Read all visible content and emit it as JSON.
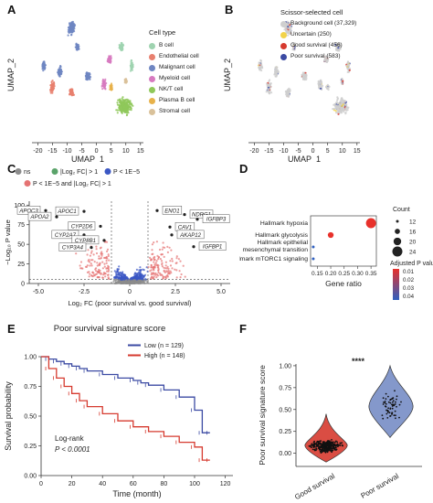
{
  "panel_labels": {
    "a": "A",
    "b": "B",
    "c": "C",
    "d": "D",
    "e": "E",
    "f": "F"
  },
  "chart_data": [
    {
      "id": "A",
      "type": "scatter",
      "xlabel": "UMAP_1",
      "ylabel": "UMAP_2",
      "xticks": [
        -20,
        -15,
        -10,
        -5,
        0,
        5,
        10,
        15
      ],
      "xlim": [
        -22,
        16
      ],
      "ylim": [
        -9,
        11
      ],
      "legend_title": "Cell type",
      "series": [
        {
          "name": "B cell",
          "color": "#9fd3b0"
        },
        {
          "name": "Endothelial cell",
          "color": "#e8806f"
        },
        {
          "name": "Malignant cell",
          "color": "#6f86c2"
        },
        {
          "name": "Myeloid cell",
          "color": "#d77ac0"
        },
        {
          "name": "NK/T cell",
          "color": "#8fc85a"
        },
        {
          "name": "Plasma B cell",
          "color": "#e8b24a"
        },
        {
          "name": "Stromal cell",
          "color": "#d9c19a"
        }
      ]
    },
    {
      "id": "B",
      "type": "scatter",
      "xlabel": "UMAP_1",
      "ylabel": "UMAP_2",
      "xticks": [
        -20,
        -15,
        -10,
        -5,
        0,
        5,
        10,
        15
      ],
      "xlim": [
        -22,
        16
      ],
      "ylim": [
        -9,
        11
      ],
      "legend_title": "Scissor-selected cell",
      "series": [
        {
          "name": "Background cell (37,329)",
          "color": "#cfcfcf"
        },
        {
          "name": "Uncertain (250)",
          "color": "#f2d34a"
        },
        {
          "name": "Good survival (456)",
          "color": "#d63a2f"
        },
        {
          "name": "Poor survival (583)",
          "color": "#3b4aa3"
        }
      ]
    },
    {
      "id": "C",
      "type": "scatter",
      "xlabel": "Log₂ FC (poor survival vs. good survival)",
      "ylabel": "−Log₁₀ P value",
      "xlim": [
        -5.5,
        5.5
      ],
      "ylim": [
        0,
        105
      ],
      "xticks": [
        -5.0,
        -2.5,
        0,
        2.5,
        5.0
      ],
      "yticks": [
        0,
        25,
        50,
        75,
        100
      ],
      "legend": [
        {
          "name": "ns",
          "color": "#8c8c8c"
        },
        {
          "name": "|Log₂ FC| > 1",
          "color": "#5aa36a"
        },
        {
          "name": "P < 1E−5",
          "color": "#3b57c4"
        },
        {
          "name": "P < 1E−5 and |Log₂ FC| > 1",
          "color": "#e57373"
        }
      ],
      "labeled_points": [
        {
          "label": "APOC3",
          "x": -4.6,
          "y": 93
        },
        {
          "label": "APOA2",
          "x": -4.0,
          "y": 85
        },
        {
          "label": "APOC1",
          "x": -2.5,
          "y": 92
        },
        {
          "label": "CYP2A7",
          "x": -2.5,
          "y": 62
        },
        {
          "label": "CYP2D6",
          "x": -1.6,
          "y": 73
        },
        {
          "label": "CYP8B1",
          "x": -1.4,
          "y": 55
        },
        {
          "label": "CYP3A4",
          "x": -2.1,
          "y": 46
        },
        {
          "label": "ENO1",
          "x": 1.5,
          "y": 93
        },
        {
          "label": "NDRG1",
          "x": 3.0,
          "y": 88
        },
        {
          "label": "IGFBP3",
          "x": 3.7,
          "y": 82
        },
        {
          "label": "CAV1",
          "x": 2.2,
          "y": 72
        },
        {
          "label": "AKAP12",
          "x": 2.3,
          "y": 62
        },
        {
          "label": "IGFBP1",
          "x": 3.5,
          "y": 47
        }
      ]
    },
    {
      "id": "D",
      "type": "scatter",
      "xlabel": "Gene ratio",
      "xticks": [
        0.15,
        0.2,
        0.25,
        0.3,
        0.35
      ],
      "xlim": [
        0.125,
        0.37
      ],
      "categories": [
        "Hallmark hypoxia",
        "Hallmark glycolysis",
        "Hallmark epithelial mesenchymal transition",
        "Hallmark mTORC1 signaling"
      ],
      "points": [
        {
          "term": "Hallmark hypoxia",
          "x": 0.35,
          "count": 24,
          "padj": 0.01
        },
        {
          "term": "Hallmark glycolysis",
          "x": 0.2,
          "count": 17,
          "padj": 0.01
        },
        {
          "term": "Hallmark epithelial mesenchymal transition",
          "x": 0.135,
          "count": 12,
          "padj": 0.04
        },
        {
          "term": "Hallmark mTORC1 signaling",
          "x": 0.135,
          "count": 12,
          "padj": 0.04
        }
      ],
      "size_legend_title": "Count",
      "size_legend": [
        12,
        16,
        20,
        24
      ],
      "color_legend_title": "Adjusted P value",
      "color_legend": [
        0.01,
        0.02,
        0.03,
        0.04
      ]
    },
    {
      "id": "E",
      "type": "line",
      "title": "Poor survival signature score",
      "xlabel": "Time (month)",
      "ylabel": "Survival probability",
      "xticks": [
        0,
        20,
        40,
        60,
        80,
        100,
        120
      ],
      "yticks": [
        0.0,
        0.25,
        0.5,
        0.75,
        1.0
      ],
      "xlim": [
        0,
        125
      ],
      "ylim": [
        0,
        1
      ],
      "annotation_line1": "Log-rank",
      "annotation_line2": "P < 0.0001",
      "series": [
        {
          "name": "Low (n = 129)",
          "color": "#3b4aa3",
          "x": [
            0,
            5,
            10,
            15,
            20,
            25,
            30,
            40,
            50,
            60,
            65,
            70,
            80,
            90,
            100,
            105,
            110
          ],
          "y": [
            1,
            0.98,
            0.96,
            0.94,
            0.92,
            0.9,
            0.88,
            0.85,
            0.82,
            0.8,
            0.78,
            0.76,
            0.72,
            0.66,
            0.55,
            0.36,
            0.36
          ]
        },
        {
          "name": "High (n = 148)",
          "color": "#d63a2f",
          "x": [
            0,
            5,
            10,
            15,
            20,
            25,
            30,
            40,
            50,
            60,
            70,
            80,
            90,
            100,
            105,
            110
          ],
          "y": [
            1,
            0.9,
            0.82,
            0.75,
            0.69,
            0.63,
            0.58,
            0.52,
            0.46,
            0.41,
            0.37,
            0.33,
            0.28,
            0.24,
            0.13,
            0.13
          ]
        }
      ]
    },
    {
      "id": "F",
      "type": "scatter",
      "ylabel": "Poor survival signature score",
      "categories": [
        "Good survival",
        "Poor survival"
      ],
      "yticks": [
        0.0,
        0.25,
        0.5,
        0.75,
        1.0
      ],
      "ylim": [
        -0.15,
        1.02
      ],
      "significance": "****",
      "medians": [
        0.08,
        0.52
      ]
    }
  ]
}
